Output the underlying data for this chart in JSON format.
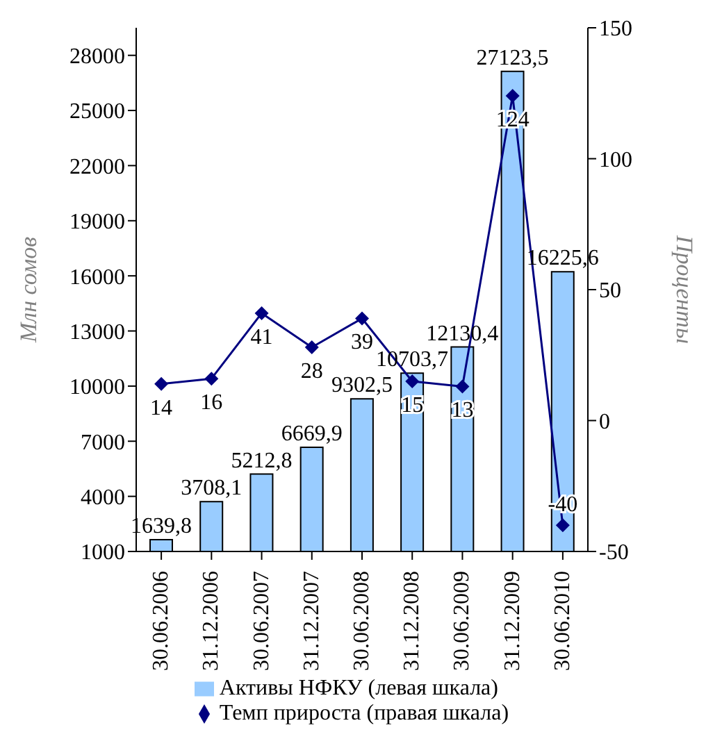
{
  "chart_data": {
    "type": "bar",
    "categories": [
      "30.06.2006",
      "31.12.2006",
      "30.06.2007",
      "31.12.2007",
      "30.06.2008",
      "31.12.2008",
      "30.06.2009",
      "31.12.2009",
      "30.06.2010"
    ],
    "series": [
      {
        "name": "Активы НФКУ (левая шкала)",
        "color": "#99ccff",
        "values": [
          1639.8,
          3708.1,
          5212.8,
          6669.9,
          9302.5,
          10703.7,
          12130.4,
          27123.5,
          16225.6
        ],
        "value_labels": [
          "1639,8",
          "3708,1",
          "5212,8",
          "6669,9",
          "9302,5",
          "10703,7",
          "12130,4",
          "27123,5",
          "16225,6"
        ]
      },
      {
        "name": "Темп прироста (правая шкала)",
        "type": "line",
        "axis": "y2",
        "color": "#000080",
        "values": [
          14,
          16,
          41,
          28,
          39,
          15,
          13,
          124,
          -40
        ],
        "value_labels": [
          "14",
          "16",
          "41",
          "28",
          "39",
          "15",
          "13",
          "124",
          "-40"
        ]
      }
    ],
    "ylabel": "Млн сомов",
    "y2label": "Проценты",
    "ylim": [
      1000,
      29500
    ],
    "yticks": [
      1000,
      4000,
      7000,
      10000,
      13000,
      16000,
      19000,
      22000,
      25000,
      28000
    ],
    "y2lim": [
      -50,
      150
    ],
    "y2ticks": [
      -50,
      0,
      50,
      100,
      150
    ],
    "grid": false,
    "legend": "bottom",
    "marker": "diamond",
    "line_style": "solid"
  }
}
